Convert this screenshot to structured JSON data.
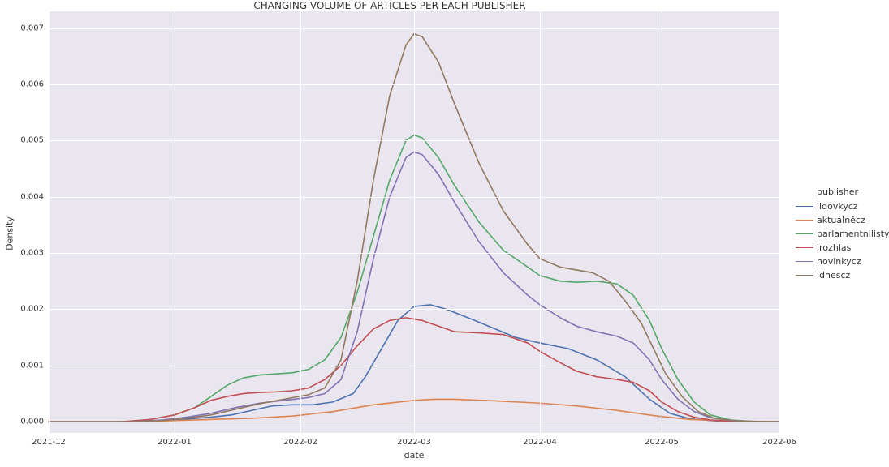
{
  "chart": {
    "type": "line-density",
    "title": "CHANGING VOLUME OF ARTICLES PER EACH PUBLISHER",
    "title_fontsize": 12,
    "xlabel": "date",
    "ylabel": "Density",
    "label_fontsize": 11,
    "background_color": "#ffffff",
    "plot_bg_color": "#e9e6ef",
    "grid_color": "#ffffff",
    "tick_fontsize": 10,
    "line_width": 1.6,
    "x": {
      "min": 0,
      "max": 180,
      "ticks": [
        {
          "pos": 0,
          "label": "2021-12"
        },
        {
          "pos": 31,
          "label": "2022-01"
        },
        {
          "pos": 62,
          "label": "2022-02"
        },
        {
          "pos": 90,
          "label": "2022-03"
        },
        {
          "pos": 121,
          "label": "2022-04"
        },
        {
          "pos": 151,
          "label": "2022-05"
        },
        {
          "pos": 180,
          "label": "2022-06"
        }
      ]
    },
    "y": {
      "min": -0.0002,
      "max": 0.0073,
      "ticks": [
        {
          "pos": 0.0,
          "label": "0.000"
        },
        {
          "pos": 0.001,
          "label": "0.001"
        },
        {
          "pos": 0.002,
          "label": "0.002"
        },
        {
          "pos": 0.003,
          "label": "0.003"
        },
        {
          "pos": 0.004,
          "label": "0.004"
        },
        {
          "pos": 0.005,
          "label": "0.005"
        },
        {
          "pos": 0.006,
          "label": "0.006"
        },
        {
          "pos": 0.007,
          "label": "0.007"
        }
      ]
    },
    "legend": {
      "title": "publisher",
      "items": [
        {
          "label": "lidovkycz",
          "color": "#4c72b0"
        },
        {
          "label": "aktuálněcz",
          "color": "#dd8452"
        },
        {
          "label": "parlamentnilisty",
          "color": "#55a868"
        },
        {
          "label": "irozhlas",
          "color": "#c44e52"
        },
        {
          "label": "novinkycz",
          "color": "#8172b3"
        },
        {
          "label": "idnescz",
          "color": "#937860"
        }
      ]
    },
    "series": {
      "lidovkycz": {
        "color": "#4c72b0",
        "points": [
          [
            0,
            0.0
          ],
          [
            20,
            0.0
          ],
          [
            31,
            3e-05
          ],
          [
            40,
            8e-05
          ],
          [
            45,
            0.00012
          ],
          [
            50,
            0.0002
          ],
          [
            55,
            0.00028
          ],
          [
            60,
            0.0003
          ],
          [
            65,
            0.0003
          ],
          [
            70,
            0.00035
          ],
          [
            75,
            0.0005
          ],
          [
            78,
            0.0008
          ],
          [
            82,
            0.0013
          ],
          [
            86,
            0.0018
          ],
          [
            90,
            0.00205
          ],
          [
            94,
            0.00208
          ],
          [
            98,
            0.002
          ],
          [
            105,
            0.0018
          ],
          [
            110,
            0.00165
          ],
          [
            115,
            0.0015
          ],
          [
            121,
            0.0014
          ],
          [
            128,
            0.0013
          ],
          [
            135,
            0.0011
          ],
          [
            142,
            0.0008
          ],
          [
            148,
            0.0004
          ],
          [
            153,
            0.00015
          ],
          [
            158,
            5e-05
          ],
          [
            165,
            1e-05
          ],
          [
            175,
            0.0
          ],
          [
            180,
            0.0
          ]
        ]
      },
      "aktualnecz": {
        "color": "#dd8452",
        "points": [
          [
            0,
            0.0
          ],
          [
            25,
            0.0
          ],
          [
            31,
            2e-05
          ],
          [
            40,
            4e-05
          ],
          [
            50,
            6e-05
          ],
          [
            60,
            0.0001
          ],
          [
            70,
            0.00018
          ],
          [
            80,
            0.0003
          ],
          [
            90,
            0.00038
          ],
          [
            95,
            0.0004
          ],
          [
            100,
            0.0004
          ],
          [
            110,
            0.00037
          ],
          [
            121,
            0.00033
          ],
          [
            130,
            0.00028
          ],
          [
            140,
            0.0002
          ],
          [
            150,
            0.0001
          ],
          [
            158,
            4e-05
          ],
          [
            168,
            1e-05
          ],
          [
            180,
            0.0
          ]
        ]
      },
      "parlamentnilisty": {
        "color": "#55a868",
        "points": [
          [
            0,
            0.0
          ],
          [
            18,
            0.0
          ],
          [
            25,
            4e-05
          ],
          [
            31,
            0.00012
          ],
          [
            36,
            0.00025
          ],
          [
            40,
            0.00045
          ],
          [
            44,
            0.00065
          ],
          [
            48,
            0.00078
          ],
          [
            52,
            0.00083
          ],
          [
            56,
            0.00085
          ],
          [
            60,
            0.00087
          ],
          [
            64,
            0.00093
          ],
          [
            68,
            0.0011
          ],
          [
            72,
            0.0015
          ],
          [
            76,
            0.0023
          ],
          [
            80,
            0.0033
          ],
          [
            84,
            0.0043
          ],
          [
            88,
            0.005
          ],
          [
            90,
            0.0051
          ],
          [
            92,
            0.00505
          ],
          [
            96,
            0.0047
          ],
          [
            100,
            0.0042
          ],
          [
            106,
            0.00355
          ],
          [
            112,
            0.00305
          ],
          [
            118,
            0.00275
          ],
          [
            121,
            0.0026
          ],
          [
            126,
            0.0025
          ],
          [
            130,
            0.00248
          ],
          [
            135,
            0.0025
          ],
          [
            140,
            0.00245
          ],
          [
            144,
            0.00225
          ],
          [
            148,
            0.0018
          ],
          [
            151,
            0.0013
          ],
          [
            155,
            0.00075
          ],
          [
            159,
            0.00035
          ],
          [
            163,
            0.00012
          ],
          [
            168,
            3e-05
          ],
          [
            175,
            0.0
          ],
          [
            180,
            0.0
          ]
        ]
      },
      "irozhlas": {
        "color": "#c44e52",
        "points": [
          [
            0,
            0.0
          ],
          [
            18,
            0.0
          ],
          [
            25,
            4e-05
          ],
          [
            31,
            0.00012
          ],
          [
            36,
            0.00025
          ],
          [
            40,
            0.00038
          ],
          [
            44,
            0.00045
          ],
          [
            48,
            0.0005
          ],
          [
            52,
            0.00052
          ],
          [
            56,
            0.00053
          ],
          [
            60,
            0.00055
          ],
          [
            64,
            0.0006
          ],
          [
            68,
            0.00075
          ],
          [
            72,
            0.001
          ],
          [
            76,
            0.00135
          ],
          [
            80,
            0.00165
          ],
          [
            84,
            0.0018
          ],
          [
            88,
            0.00185
          ],
          [
            92,
            0.0018
          ],
          [
            96,
            0.0017
          ],
          [
            100,
            0.0016
          ],
          [
            106,
            0.00158
          ],
          [
            112,
            0.00155
          ],
          [
            118,
            0.0014
          ],
          [
            121,
            0.00125
          ],
          [
            126,
            0.00105
          ],
          [
            130,
            0.0009
          ],
          [
            135,
            0.0008
          ],
          [
            140,
            0.00075
          ],
          [
            144,
            0.0007
          ],
          [
            148,
            0.00055
          ],
          [
            151,
            0.00035
          ],
          [
            155,
            0.00018
          ],
          [
            159,
            8e-05
          ],
          [
            163,
            3e-05
          ],
          [
            170,
            0.0
          ],
          [
            180,
            0.0
          ]
        ]
      },
      "novinkycz": {
        "color": "#8172b3",
        "points": [
          [
            0,
            0.0
          ],
          [
            20,
            0.0
          ],
          [
            28,
            3e-05
          ],
          [
            34,
            8e-05
          ],
          [
            40,
            0.00015
          ],
          [
            46,
            0.00025
          ],
          [
            52,
            0.00033
          ],
          [
            58,
            0.00038
          ],
          [
            64,
            0.00043
          ],
          [
            68,
            0.0005
          ],
          [
            72,
            0.00075
          ],
          [
            76,
            0.0016
          ],
          [
            80,
            0.0029
          ],
          [
            84,
            0.004
          ],
          [
            88,
            0.0047
          ],
          [
            90,
            0.0048
          ],
          [
            92,
            0.00475
          ],
          [
            96,
            0.0044
          ],
          [
            100,
            0.0039
          ],
          [
            106,
            0.0032
          ],
          [
            112,
            0.00265
          ],
          [
            118,
            0.00225
          ],
          [
            121,
            0.00208
          ],
          [
            126,
            0.00185
          ],
          [
            130,
            0.0017
          ],
          [
            135,
            0.0016
          ],
          [
            140,
            0.00152
          ],
          [
            144,
            0.0014
          ],
          [
            148,
            0.0011
          ],
          [
            151,
            0.00075
          ],
          [
            155,
            0.0004
          ],
          [
            159,
            0.00018
          ],
          [
            163,
            7e-05
          ],
          [
            168,
            2e-05
          ],
          [
            175,
            0.0
          ],
          [
            180,
            0.0
          ]
        ]
      },
      "idnescz": {
        "color": "#937860",
        "points": [
          [
            0,
            0.0
          ],
          [
            20,
            0.0
          ],
          [
            28,
            2e-05
          ],
          [
            34,
            6e-05
          ],
          [
            40,
            0.00012
          ],
          [
            46,
            0.00022
          ],
          [
            52,
            0.00032
          ],
          [
            58,
            0.0004
          ],
          [
            64,
            0.00048
          ],
          [
            68,
            0.0006
          ],
          [
            72,
            0.0011
          ],
          [
            76,
            0.0025
          ],
          [
            80,
            0.0043
          ],
          [
            84,
            0.0058
          ],
          [
            88,
            0.0067
          ],
          [
            90,
            0.0069
          ],
          [
            92,
            0.00685
          ],
          [
            96,
            0.0064
          ],
          [
            100,
            0.00565
          ],
          [
            106,
            0.0046
          ],
          [
            112,
            0.00375
          ],
          [
            118,
            0.00315
          ],
          [
            121,
            0.0029
          ],
          [
            126,
            0.00275
          ],
          [
            130,
            0.0027
          ],
          [
            134,
            0.00265
          ],
          [
            138,
            0.0025
          ],
          [
            142,
            0.00215
          ],
          [
            146,
            0.00175
          ],
          [
            149,
            0.0013
          ],
          [
            152,
            0.00085
          ],
          [
            156,
            0.00045
          ],
          [
            160,
            0.00018
          ],
          [
            164,
            6e-05
          ],
          [
            170,
            1e-05
          ],
          [
            180,
            0.0
          ]
        ]
      }
    }
  }
}
